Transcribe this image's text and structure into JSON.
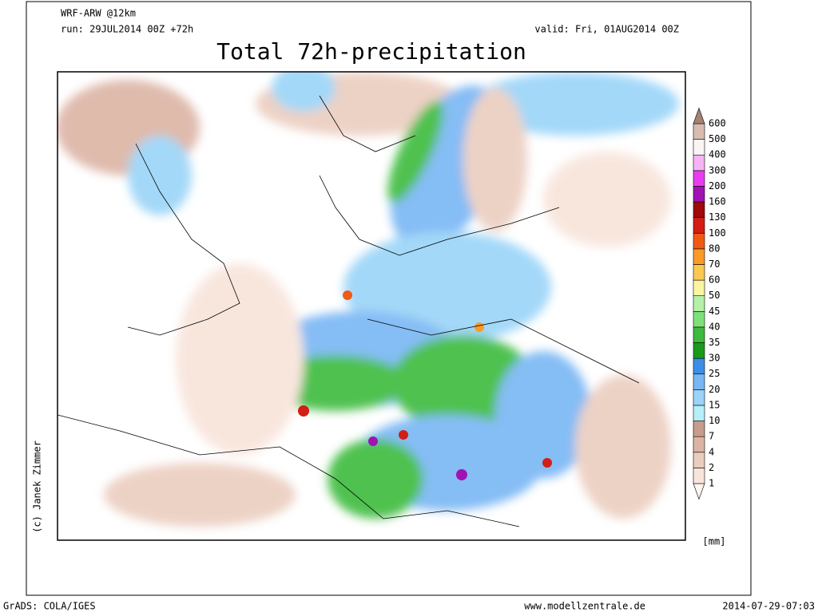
{
  "header": {
    "model": "WRF-ARW @12km",
    "run": "run: 29JUL2014 00Z +72h",
    "valid": "valid: Fri, 01AUG2014 00Z"
  },
  "title": "Total 72h-precipitation",
  "legend": {
    "labels": [
      1,
      2,
      4,
      7,
      10,
      15,
      20,
      25,
      30,
      35,
      40,
      45,
      50,
      60,
      70,
      80,
      100,
      130,
      160,
      200,
      300,
      400,
      500,
      600
    ],
    "colors": [
      "#fdf6f2",
      "#f8e4da",
      "#ebcdbf",
      "#dcb4a4",
      "#c79c8c",
      "#b6eef9",
      "#9ad4f8",
      "#78b6f4",
      "#3c8ee8",
      "#1a9a1a",
      "#3cbb3c",
      "#7ee07a",
      "#b4f0a8",
      "#faf5a0",
      "#fbc850",
      "#fa9a28",
      "#f05a14",
      "#d21e14",
      "#a00a0a",
      "#a012b4",
      "#e83cf0",
      "#f6b4f6",
      "#fbf4f4",
      "#d8bcb0",
      "#a48274"
    ],
    "unit": "[mm]"
  },
  "credit": "(c) Janek Zimmer",
  "footer": {
    "software": "GrADS: COLA/IGES",
    "site": "www.modellzentrale.de",
    "timestamp": "2014-07-29-07:03"
  }
}
